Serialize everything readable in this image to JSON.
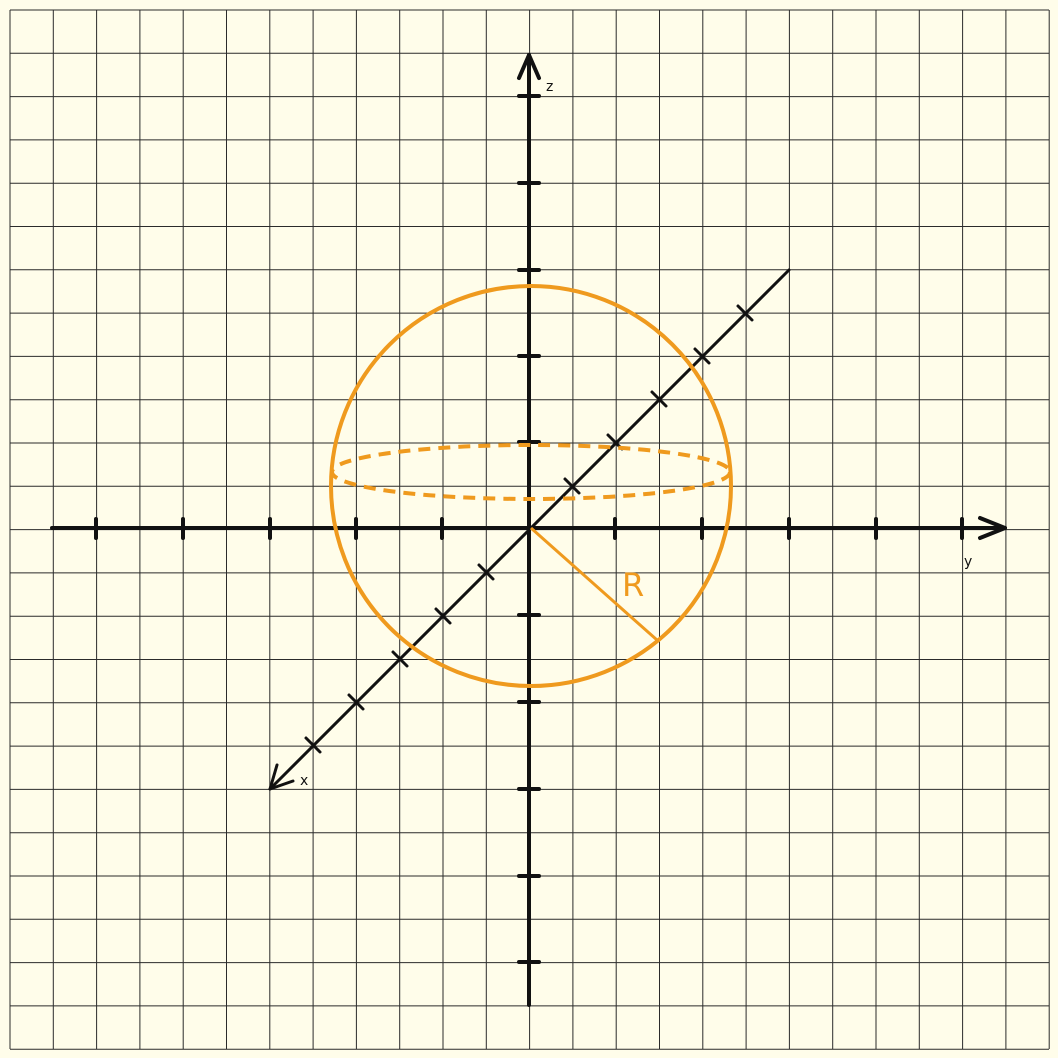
{
  "diagram": {
    "labels": {
      "x": "x",
      "y": "y",
      "z": "z",
      "radius": "R"
    },
    "colors": {
      "background": "#fffdea",
      "grid": "#2b2b2b",
      "axis": "#111111",
      "sphere": "#ef9a1e"
    }
  }
}
